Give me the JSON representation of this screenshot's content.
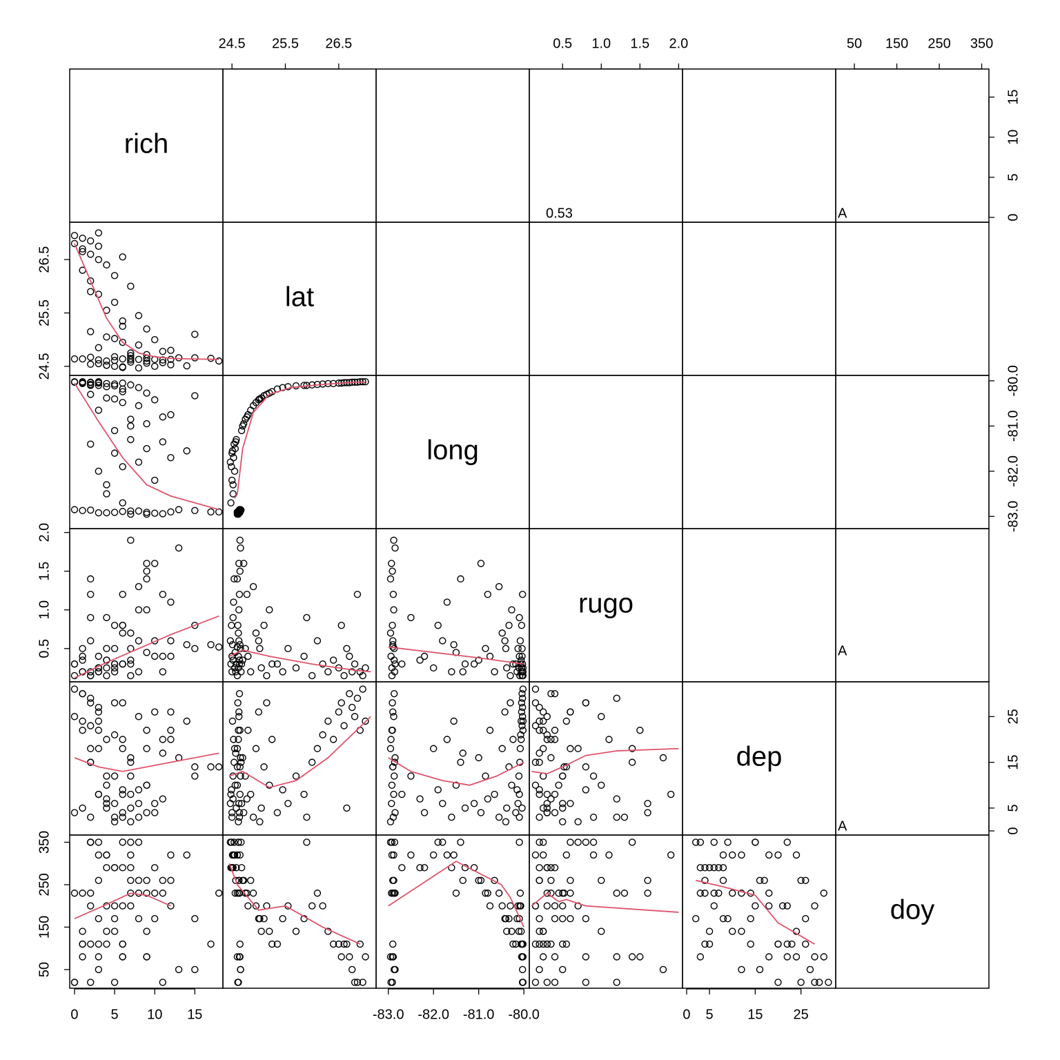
{
  "chart_data": {
    "type": "scatter-matrix",
    "smooth_color": "#DF536B",
    "point_color": "#000000",
    "variables": [
      {
        "name": "rich",
        "lim": [
          -0.6,
          18.5
        ],
        "ticks": [
          0,
          5,
          10,
          15
        ],
        "values": [
          3,
          7,
          12,
          0,
          9,
          15,
          5,
          10,
          2,
          6,
          11,
          17,
          8,
          4,
          13,
          1,
          7,
          9,
          6,
          4,
          10,
          3,
          8,
          12,
          5,
          9,
          2,
          7,
          14,
          6,
          11,
          4,
          5,
          9,
          7,
          12,
          3,
          8,
          6,
          10,
          4,
          15,
          2,
          9,
          6,
          11,
          7,
          5,
          6,
          8,
          4,
          5,
          3,
          7,
          2,
          5,
          1,
          4,
          3,
          6,
          2,
          1,
          3,
          0,
          2,
          1,
          0,
          3,
          1,
          2,
          18
        ],
        "smooths": []
      },
      {
        "name": "lat",
        "lim": [
          24.33,
          27.2
        ],
        "ticks": [
          24.5,
          25.5,
          26.5
        ],
        "values": [
          24.62,
          24.65,
          24.63,
          24.64,
          24.6,
          24.66,
          24.61,
          24.63,
          24.67,
          24.64,
          24.62,
          24.65,
          24.63,
          24.6,
          24.66,
          24.64,
          24.62,
          24.65,
          24.48,
          24.52,
          24.5,
          24.55,
          24.47,
          24.53,
          24.5,
          24.56,
          24.54,
          24.58,
          24.51,
          24.49,
          24.57,
          24.52,
          24.68,
          24.72,
          24.75,
          24.8,
          24.85,
          24.9,
          24.95,
          25.0,
          25.05,
          25.1,
          25.15,
          25.2,
          25.25,
          24.78,
          24.7,
          25.02,
          25.35,
          25.45,
          25.55,
          25.7,
          25.85,
          26.0,
          26.1,
          26.2,
          26.3,
          26.4,
          26.5,
          26.55,
          26.6,
          26.7,
          26.75,
          26.8,
          26.85,
          26.9,
          26.95,
          27.0,
          26.65,
          25.9,
          24.6
        ],
        "smooths": [
          {
            "x": [
              0,
              2,
              4,
              6,
              8,
              10,
              12,
              14,
              18
            ],
            "y": [
              26.8,
              26.1,
              25.4,
              24.95,
              24.75,
              24.68,
              24.65,
              24.64,
              24.63
            ]
          }
        ]
      },
      {
        "name": "long",
        "lim": [
          -83.27,
          -79.88
        ],
        "ticks": [
          {
            "value": -83,
            "label": "-83.0"
          },
          {
            "value": -82,
            "label": "-82.0"
          },
          {
            "value": -81,
            "label": "-81.0"
          },
          {
            "value": -80,
            "label": "-80.0"
          }
        ],
        "values": [
          -82.92,
          -82.88,
          -82.9,
          -82.85,
          -82.95,
          -82.87,
          -82.91,
          -82.93,
          -82.86,
          -82.89,
          -82.94,
          -82.9,
          -82.88,
          -82.92,
          -82.85,
          -82.87,
          -82.95,
          -82.91,
          -82.7,
          -82.5,
          -82.2,
          -82.0,
          -81.8,
          -81.7,
          -81.6,
          -81.5,
          -81.4,
          -81.3,
          -81.55,
          -81.9,
          -81.35,
          -82.3,
          -81.1,
          -80.95,
          -80.85,
          -80.75,
          -80.65,
          -80.55,
          -80.48,
          -80.42,
          -80.38,
          -80.33,
          -80.3,
          -80.27,
          -80.24,
          -80.8,
          -81.0,
          -80.4,
          -80.18,
          -80.15,
          -80.13,
          -80.11,
          -80.1,
          -80.09,
          -80.08,
          -80.07,
          -80.06,
          -80.06,
          -80.05,
          -80.05,
          -80.04,
          -80.04,
          -80.03,
          -80.03,
          -80.03,
          -80.02,
          -80.02,
          -80.02,
          -80.04,
          -80.1,
          -82.9
        ],
        "smooths": [
          {
            "x": [
              0,
              3,
              6,
              9,
              12,
              15,
              18
            ],
            "y": [
              -80.05,
              -80.9,
              -81.7,
              -82.3,
              -82.55,
              -82.7,
              -82.85
            ]
          },
          {
            "x": [
              24.55,
              24.6,
              24.7,
              24.9,
              25.2,
              25.6,
              26.2,
              26.8,
              27.0
            ],
            "y": [
              -82.6,
              -82.5,
              -81.5,
              -80.7,
              -80.3,
              -80.15,
              -80.08,
              -80.03,
              -80.03
            ]
          }
        ]
      },
      {
        "name": "rugo",
        "lim": [
          0.07,
          2.05
        ],
        "ticks": [
          0.5,
          {
            "value": 1,
            "label": "1.0"
          },
          1.5,
          {
            "value": 2,
            "label": "2.0"
          }
        ],
        "values": [
          0.25,
          1.9,
          0.6,
          0.3,
          1.4,
          0.5,
          0.8,
          1.6,
          0.2,
          1.2,
          0.4,
          0.55,
          1.0,
          0.15,
          1.8,
          0.35,
          0.7,
          1.5,
          0.3,
          0.9,
          0.4,
          0.25,
          0.6,
          1.1,
          0.2,
          0.45,
          1.4,
          0.3,
          0.55,
          0.8,
          0.2,
          0.35,
          0.3,
          1.6,
          0.5,
          0.4,
          0.2,
          1.3,
          0.7,
          0.6,
          0.25,
          0.8,
          0.15,
          1.0,
          0.3,
          1.2,
          0.35,
          0.5,
          0.3,
          0.2,
          0.5,
          0.25,
          0.4,
          0.15,
          0.6,
          0.3,
          0.2,
          0.35,
          0.25,
          0.8,
          0.15,
          0.4,
          0.2,
          0.3,
          1.2,
          0.2,
          0.15,
          0.25,
          0.5,
          0.9,
          0.52
        ],
        "smooths": [
          {
            "x": [
              0,
              4,
              8,
              12,
              18
            ],
            "y": [
              0.12,
              0.32,
              0.5,
              0.68,
              0.92
            ]
          },
          {
            "x": [
              24.45,
              24.7,
              25.2,
              26,
              26.8,
              27.1
            ],
            "y": [
              0.4,
              0.48,
              0.4,
              0.3,
              0.22,
              0.2
            ]
          },
          {
            "x": [
              -83,
              -82,
              -81,
              -80
            ],
            "y": [
              0.52,
              0.45,
              0.38,
              0.3
            ]
          }
        ]
      },
      {
        "name": "dep",
        "lim": [
          -0.9,
          32.6
        ],
        "ticks": [
          0,
          5,
          15,
          25
        ],
        "values": [
          22,
          8,
          26,
          4,
          18,
          12,
          28,
          6,
          15,
          3,
          20,
          14,
          25,
          10,
          16,
          30,
          2,
          22,
          8,
          12,
          4,
          18,
          6,
          20,
          3,
          10,
          15,
          5,
          24,
          9,
          17,
          7,
          6,
          4,
          12,
          22,
          8,
          3,
          18,
          26,
          5,
          14,
          28,
          10,
          20,
          7,
          16,
          2,
          4,
          9,
          6,
          12,
          8,
          15,
          18,
          21,
          24,
          20,
          26,
          28,
          23,
          30,
          27,
          25,
          29,
          22,
          31,
          24,
          5,
          3,
          14
        ],
        "smooths": [
          {
            "x": [
              0,
              3,
              6,
              9,
              12,
              18
            ],
            "y": [
              16,
              14,
              13,
              14,
              15,
              17
            ]
          },
          {
            "x": [
              24.45,
              24.7,
              25.2,
              25.7,
              26.3,
              27.1
            ],
            "y": [
              12,
              13,
              9.5,
              11,
              16,
              25
            ]
          },
          {
            "x": [
              -83,
              -82.5,
              -81.8,
              -81.2,
              -80.6,
              -80
            ],
            "y": [
              16,
              13,
              11,
              10,
              12,
              15
            ]
          },
          {
            "x": [
              0.1,
              0.3,
              0.5,
              0.8,
              1.2,
              2.0
            ],
            "y": [
              13,
              12.5,
              14,
              16.5,
              17.5,
              18
            ]
          }
        ]
      },
      {
        "name": "doy",
        "lim": [
          6,
          367
        ],
        "ticks": [
          50,
          150,
          250,
          350
        ],
        "values": [
          350,
          320,
          260,
          230,
          80,
          50,
          20,
          230,
          350,
          80,
          20,
          110,
          260,
          320,
          50,
          230,
          350,
          80,
          290,
          320,
          290,
          320,
          350,
          320,
          290,
          230,
          350,
          290,
          320,
          350,
          260,
          290,
          290,
          260,
          230,
          200,
          260,
          230,
          200,
          170,
          140,
          170,
          200,
          140,
          110,
          230,
          260,
          170,
          110,
          170,
          200,
          140,
          170,
          200,
          230,
          200,
          140,
          110,
          110,
          80,
          110,
          80,
          50,
          20,
          20,
          110,
          20,
          80,
          110,
          350,
          230
        ],
        "smooths": [
          {
            "x": [
              0,
              3,
              7,
              9,
              12
            ],
            "y": [
              170,
              195,
              230,
              225,
              200
            ]
          },
          {
            "x": [
              24.45,
              24.6,
              25.0,
              25.5,
              26.2,
              26.9
            ],
            "y": [
              300,
              250,
              190,
              200,
              150,
              110
            ]
          },
          {
            "x": [
              -83,
              -81.5,
              -80.5,
              -80.3,
              -80
            ],
            "y": [
              200,
              305,
              250,
              220,
              150
            ]
          },
          {
            "x": [
              0.1,
              0.3,
              0.45,
              0.55,
              0.8,
              2.0
            ],
            "y": [
              200,
              230,
              210,
              215,
              200,
              185
            ]
          },
          {
            "x": [
              2,
              8,
              15,
              20,
              28
            ],
            "y": [
              260,
              245,
              225,
              160,
              110
            ]
          }
        ]
      }
    ],
    "annotations": [
      {
        "row": 0,
        "col": 3,
        "text": "0.53"
      },
      {
        "row": 0,
        "col": 5,
        "text": "A"
      },
      {
        "row": 3,
        "col": 5,
        "text": "A"
      },
      {
        "row": 4,
        "col": 5,
        "text": "A"
      }
    ]
  }
}
